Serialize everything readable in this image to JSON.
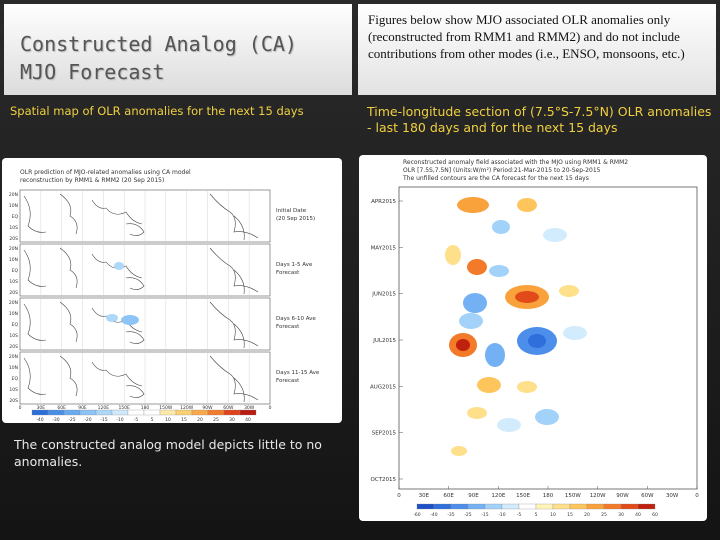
{
  "title": {
    "line1": "Constructed Analog (CA)",
    "line2": "MJO Forecast"
  },
  "description": "Figures below show MJO associated OLR anomalies only (reconstructed from RMM1 and RMM2) and do not include contributions from other modes (i.e., ENSO, monsoons, etc.)",
  "left_subtitle": "Spatial map of OLR anomalies for the next 15 days",
  "right_subtitle": "Time-longitude section of (7.5°S-7.5°N) OLR anomalies - last 180 days and for the next 15 days",
  "note": "The constructed analog model depicts little to no anomalies.",
  "left_figure": {
    "header1": "OLR prediction of MJO-related anomalies using CA model",
    "header2": "reconstruction by RMM1 & RMM2 (20 Sep 2015)",
    "lat_labels": [
      "20N",
      "10N",
      "EQ",
      "10S",
      "20S"
    ],
    "lon_labels": [
      "0",
      "30E",
      "60E",
      "90E",
      "120E",
      "150E",
      "180",
      "150W",
      "120W",
      "90W",
      "60W",
      "30W",
      "0"
    ],
    "panels": [
      {
        "line1": "Initial Date",
        "line2": "(20 Sep 2015)"
      },
      {
        "line1": "Days 1-5 Ave",
        "line2": "Forecast"
      },
      {
        "line1": "Days 6-10 Ave",
        "line2": "Forecast"
      },
      {
        "line1": "Days 11-15 Ave",
        "line2": "Forecast"
      }
    ],
    "colorbar_labels": [
      "-40",
      "-30",
      "-25",
      "-20",
      "-15",
      "-10",
      "-5",
      "5",
      "10",
      "15",
      "20",
      "25",
      "30",
      "40"
    ],
    "colors": [
      "#2c6fd8",
      "#4a8fe6",
      "#6aaaf0",
      "#8cc4f6",
      "#aed8fa",
      "#cfe9fc",
      "#ffffff",
      "#ffffff",
      "#fde9a8",
      "#fcd072",
      "#f9a94a",
      "#f27c2c",
      "#e0421c",
      "#b81c10"
    ]
  },
  "right_figure": {
    "header1": "Reconstructed anomaly field associated with the MJO using RMM1 & RMM2",
    "header2": "OLR [7.5S,7.5N] (Units:W/m²) Period:21-Mar-2015 to 20-Sep-2015",
    "header3": "The unfilled contours are the CA forecast for the next 15 days",
    "y_labels": [
      "APR2015",
      "MAY2015",
      "JUN2015",
      "JUL2015",
      "AUG2015",
      "SEP2015",
      "OCT2015"
    ],
    "x_labels": [
      "0",
      "60E",
      "120E",
      "180",
      "120W",
      "60W",
      "0"
    ],
    "x_labels_pos": [
      "30E",
      "90E",
      "150E",
      "150W",
      "90W",
      "30W"
    ],
    "colorbar_labels": [
      "-60",
      "-40",
      "-35",
      "-25",
      "-15",
      "-10",
      "-5",
      "5",
      "10",
      "15",
      "20",
      "25",
      "30",
      "40",
      "60"
    ],
    "colors": [
      "#1f4fc8",
      "#2f6fdc",
      "#4c8eea",
      "#74b0f4",
      "#a2d2fa",
      "#d2ecfd",
      "#ffffff",
      "#fff4b8",
      "#fee08a",
      "#fdc55c",
      "#f9a23c",
      "#f27a28",
      "#e24a1a",
      "#c0200e"
    ]
  }
}
